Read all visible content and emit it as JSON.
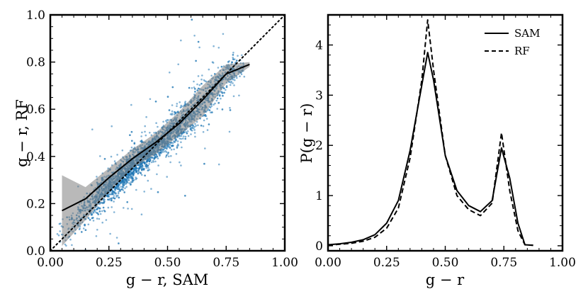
{
  "chart_data": [
    {
      "type": "scatter",
      "xlabel": "g − r, SAM",
      "ylabel": "g − r, RF",
      "xlim": [
        0.0,
        1.0
      ],
      "ylim": [
        0.0,
        1.0
      ],
      "xticks": [
        0.0,
        0.25,
        0.5,
        0.75,
        1.0
      ],
      "xtick_labels": [
        "0.00",
        "0.25",
        "0.50",
        "0.75",
        "1.00"
      ],
      "yticks": [
        0.0,
        0.2,
        0.4,
        0.6,
        0.8,
        1.0
      ],
      "ytick_labels": [
        "0.0",
        "0.2",
        "0.4",
        "0.6",
        "0.8",
        "1.0"
      ],
      "point_color": "#1f77b4",
      "scatter_trend": {
        "x": [
          0.03,
          0.1,
          0.15,
          0.2,
          0.25,
          0.3,
          0.35,
          0.4,
          0.45,
          0.5,
          0.55,
          0.6,
          0.65,
          0.7,
          0.75,
          0.8,
          0.83
        ],
        "y": [
          0.06,
          0.12,
          0.17,
          0.22,
          0.27,
          0.31,
          0.36,
          0.4,
          0.44,
          0.48,
          0.53,
          0.58,
          0.63,
          0.69,
          0.74,
          0.77,
          0.78
        ],
        "density": [
          0.05,
          0.15,
          0.3,
          0.55,
          0.8,
          0.95,
          1.0,
          1.0,
          0.95,
          0.85,
          0.7,
          0.6,
          0.5,
          0.45,
          0.4,
          0.25,
          0.1
        ],
        "spread": [
          0.04,
          0.04,
          0.04,
          0.035,
          0.03,
          0.03,
          0.03,
          0.03,
          0.03,
          0.035,
          0.04,
          0.045,
          0.045,
          0.04,
          0.035,
          0.025,
          0.02
        ]
      },
      "median_line": {
        "x": [
          0.05,
          0.15,
          0.25,
          0.35,
          0.45,
          0.55,
          0.65,
          0.75,
          0.85
        ],
        "y": [
          0.17,
          0.22,
          0.31,
          0.39,
          0.46,
          0.54,
          0.64,
          0.75,
          0.79
        ]
      },
      "band": {
        "x": [
          0.05,
          0.15,
          0.25,
          0.35,
          0.45,
          0.55,
          0.65,
          0.75,
          0.85
        ],
        "lower": [
          0.02,
          0.13,
          0.25,
          0.35,
          0.41,
          0.49,
          0.57,
          0.71,
          0.78
        ],
        "upper": [
          0.32,
          0.27,
          0.35,
          0.43,
          0.5,
          0.59,
          0.7,
          0.79,
          0.8
        ]
      },
      "diagonal": {
        "from": [
          0.0,
          0.0
        ],
        "to": [
          1.0,
          1.0
        ],
        "style": "dotted"
      }
    },
    {
      "type": "line",
      "xlabel": "g − r",
      "ylabel": "P(g − r)",
      "xlim": [
        0.0,
        1.0
      ],
      "ylim": [
        -0.1,
        4.6
      ],
      "xticks": [
        0.0,
        0.25,
        0.5,
        0.75,
        1.0
      ],
      "xtick_labels": [
        "0.00",
        "0.25",
        "0.50",
        "0.75",
        "1.00"
      ],
      "yticks": [
        0,
        1,
        2,
        3,
        4
      ],
      "ytick_labels": [
        "0",
        "1",
        "2",
        "3",
        "4"
      ],
      "legend_position": "top-right",
      "series": [
        {
          "name": "SAM",
          "style": "solid",
          "x": [
            0.0,
            0.05,
            0.1,
            0.15,
            0.2,
            0.25,
            0.3,
            0.35,
            0.4,
            0.425,
            0.45,
            0.5,
            0.55,
            0.6,
            0.65,
            0.7,
            0.74,
            0.775,
            0.81,
            0.84,
            0.875
          ],
          "y": [
            0.02,
            0.04,
            0.07,
            0.12,
            0.22,
            0.45,
            0.9,
            1.9,
            3.2,
            3.85,
            3.3,
            1.8,
            1.1,
            0.8,
            0.68,
            0.9,
            1.95,
            1.35,
            0.45,
            0.02,
            0.01
          ]
        },
        {
          "name": "RF",
          "style": "dashed",
          "x": [
            0.0,
            0.05,
            0.1,
            0.15,
            0.2,
            0.25,
            0.3,
            0.35,
            0.4,
            0.425,
            0.45,
            0.5,
            0.55,
            0.6,
            0.65,
            0.7,
            0.74,
            0.775,
            0.81,
            0.84,
            0.875
          ],
          "y": [
            0.01,
            0.03,
            0.05,
            0.09,
            0.17,
            0.35,
            0.75,
            1.75,
            3.3,
            4.5,
            3.5,
            1.8,
            1.0,
            0.72,
            0.6,
            0.85,
            2.25,
            1.1,
            0.3,
            0.02,
            0.01
          ]
        }
      ]
    }
  ]
}
